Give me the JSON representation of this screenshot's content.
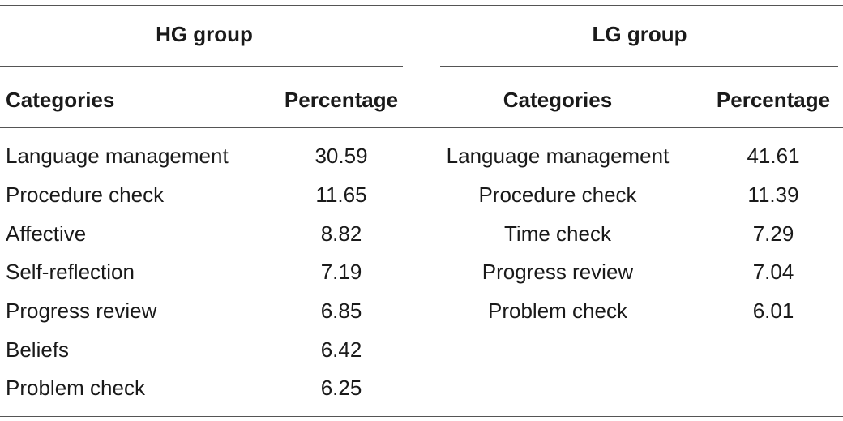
{
  "groups": [
    {
      "title": "HG group",
      "col_category": "Categories",
      "col_percentage": "Percentage",
      "rows": [
        {
          "category": "Language management",
          "percentage": "30.59"
        },
        {
          "category": "Procedure check",
          "percentage": "11.65"
        },
        {
          "category": "Affective",
          "percentage": "8.82"
        },
        {
          "category": "Self-reflection",
          "percentage": "7.19"
        },
        {
          "category": "Progress review",
          "percentage": "6.85"
        },
        {
          "category": "Beliefs",
          "percentage": "6.42"
        },
        {
          "category": "Problem check",
          "percentage": "6.25"
        }
      ]
    },
    {
      "title": "LG group",
      "col_category": "Categories",
      "col_percentage": "Percentage",
      "rows": [
        {
          "category": "Language management",
          "percentage": "41.61"
        },
        {
          "category": "Procedure check",
          "percentage": "11.39"
        },
        {
          "category": "Time check",
          "percentage": "7.29"
        },
        {
          "category": "Progress review",
          "percentage": "7.04"
        },
        {
          "category": "Problem check",
          "percentage": "6.01"
        }
      ]
    }
  ]
}
